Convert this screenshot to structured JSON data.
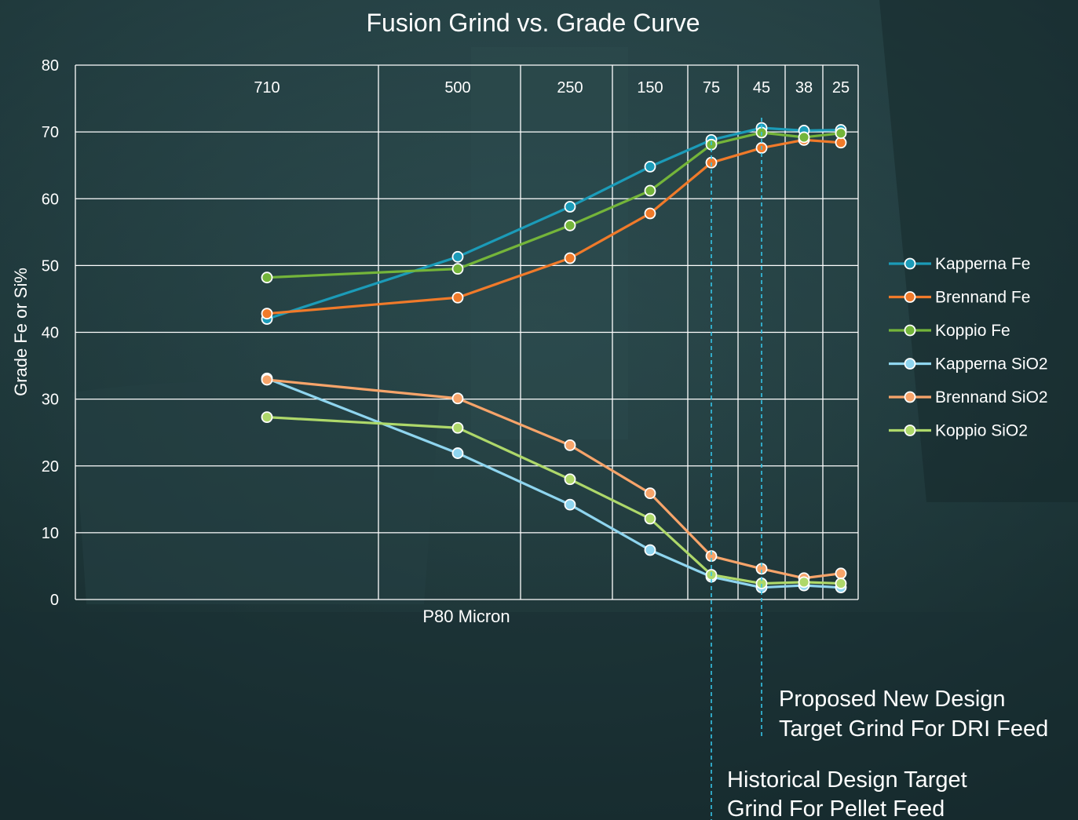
{
  "chart_data": {
    "type": "line",
    "title": "Fusion Grind vs. Grade Curve",
    "xlabel": "P80 Micron",
    "ylabel": "Grade Fe or Si%",
    "ylim": [
      0,
      80
    ],
    "yticks": [
      "0",
      "10",
      "20",
      "30",
      "40",
      "50",
      "60",
      "70",
      "80"
    ],
    "categories": [
      "710",
      "500",
      "250",
      "150",
      "75",
      "45",
      "38",
      "25"
    ],
    "grid": true,
    "legend_position": "right",
    "series": [
      {
        "name": "Kapperna Fe",
        "color": "#1b9bb8",
        "values": [
          42,
          51.3,
          58.8,
          64.8,
          68.8,
          70.6,
          70.2,
          70.3
        ]
      },
      {
        "name": "Brennand Fe",
        "color": "#f07a2a",
        "values": [
          42.8,
          45.2,
          51.1,
          57.8,
          65.4,
          67.6,
          68.8,
          68.4
        ]
      },
      {
        "name": "Koppio Fe",
        "color": "#74b53a",
        "values": [
          48.2,
          49.5,
          56,
          61.2,
          68.1,
          69.9,
          69.2,
          69.8
        ]
      },
      {
        "name": "Kapperna SiO2",
        "color": "#8fd5ef",
        "values": [
          33.1,
          21.9,
          14.2,
          7.4,
          3.4,
          1.8,
          2.1,
          1.8
        ]
      },
      {
        "name": "Brennand SiO2",
        "color": "#f7a46a",
        "values": [
          32.9,
          30.1,
          23.1,
          15.9,
          6.5,
          4.6,
          3.2,
          3.9
        ]
      },
      {
        "name": "Koppio SiO2",
        "color": "#aed86a",
        "values": [
          27.3,
          25.7,
          18,
          12.1,
          3.7,
          2.4,
          2.6,
          2.4
        ]
      }
    ],
    "annotations": [
      {
        "category": "45",
        "lines": [
          "Proposed New Design",
          "Target Grind For DRI Feed"
        ]
      },
      {
        "category": "75",
        "lines": [
          "Historical Design Target",
          "Grind For Pellet Feed"
        ]
      }
    ]
  }
}
